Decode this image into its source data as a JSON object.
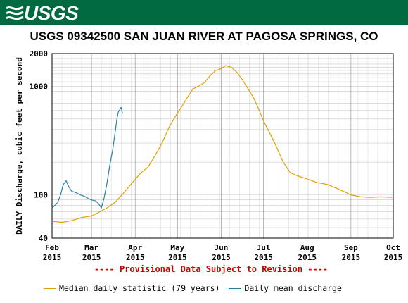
{
  "header": {
    "logo_text": "USGS",
    "banner_color": "#00693f"
  },
  "chart_data": {
    "type": "line",
    "title": "USGS 09342500 SAN JUAN RIVER AT PAGOSA SPRINGS, CO",
    "ylabel": "DAILY Discharge, cubic feet per second",
    "xlabel": "",
    "y_scale": "log",
    "ylim": [
      40,
      2000
    ],
    "y_ticks": [
      40,
      100,
      1000,
      2000
    ],
    "y_tick_labels": [
      "40",
      "100",
      "1000",
      "2000"
    ],
    "xlim": [
      "2015-02-01",
      "2015-10-01"
    ],
    "x_ticks": [
      {
        "date": "2015-02-01",
        "line1": "Feb",
        "line2": "2015"
      },
      {
        "date": "2015-03-01",
        "line1": "Mar",
        "line2": "2015"
      },
      {
        "date": "2015-04-01",
        "line1": "Apr",
        "line2": "2015"
      },
      {
        "date": "2015-05-01",
        "line1": "May",
        "line2": "2015"
      },
      {
        "date": "2015-06-01",
        "line1": "Jun",
        "line2": "2015"
      },
      {
        "date": "2015-07-01",
        "line1": "Jul",
        "line2": "2015"
      },
      {
        "date": "2015-08-01",
        "line1": "Aug",
        "line2": "2015"
      },
      {
        "date": "2015-09-01",
        "line1": "Sep",
        "line2": "2015"
      },
      {
        "date": "2015-10-01",
        "line1": "Oct",
        "line2": "2015"
      }
    ],
    "grid": true,
    "series": [
      {
        "name": "Median daily statistic (79 years)",
        "color": "#e0a000",
        "points": [
          [
            "2015-02-01",
            57
          ],
          [
            "2015-02-08",
            56
          ],
          [
            "2015-02-15",
            58
          ],
          [
            "2015-02-22",
            62
          ],
          [
            "2015-03-01",
            64
          ],
          [
            "2015-03-07",
            70
          ],
          [
            "2015-03-12",
            76
          ],
          [
            "2015-03-18",
            86
          ],
          [
            "2015-03-24",
            105
          ],
          [
            "2015-03-30",
            130
          ],
          [
            "2015-04-05",
            160
          ],
          [
            "2015-04-10",
            180
          ],
          [
            "2015-04-15",
            230
          ],
          [
            "2015-04-20",
            300
          ],
          [
            "2015-04-25",
            420
          ],
          [
            "2015-05-01",
            570
          ],
          [
            "2015-05-04",
            650
          ],
          [
            "2015-05-08",
            790
          ],
          [
            "2015-05-12",
            950
          ],
          [
            "2015-05-16",
            1000
          ],
          [
            "2015-05-20",
            1080
          ],
          [
            "2015-05-24",
            1250
          ],
          [
            "2015-05-28",
            1400
          ],
          [
            "2015-06-01",
            1450
          ],
          [
            "2015-06-04",
            1550
          ],
          [
            "2015-06-08",
            1500
          ],
          [
            "2015-06-12",
            1350
          ],
          [
            "2015-06-16",
            1150
          ],
          [
            "2015-06-20",
            950
          ],
          [
            "2015-06-24",
            780
          ],
          [
            "2015-06-28",
            600
          ],
          [
            "2015-07-01",
            480
          ],
          [
            "2015-07-05",
            380
          ],
          [
            "2015-07-10",
            280
          ],
          [
            "2015-07-15",
            200
          ],
          [
            "2015-07-20",
            160
          ],
          [
            "2015-07-25",
            150
          ],
          [
            "2015-08-01",
            140
          ],
          [
            "2015-08-08",
            130
          ],
          [
            "2015-08-15",
            125
          ],
          [
            "2015-08-22",
            115
          ],
          [
            "2015-09-01",
            100
          ],
          [
            "2015-09-08",
            96
          ],
          [
            "2015-09-15",
            95
          ],
          [
            "2015-09-22",
            96
          ],
          [
            "2015-10-01",
            95
          ]
        ]
      },
      {
        "name": "Daily mean discharge",
        "color": "#2a7fa8",
        "points": [
          [
            "2015-02-01",
            76
          ],
          [
            "2015-02-03",
            80
          ],
          [
            "2015-02-05",
            85
          ],
          [
            "2015-02-07",
            100
          ],
          [
            "2015-02-09",
            125
          ],
          [
            "2015-02-11",
            135
          ],
          [
            "2015-02-13",
            118
          ],
          [
            "2015-02-15",
            108
          ],
          [
            "2015-02-18",
            105
          ],
          [
            "2015-02-21",
            100
          ],
          [
            "2015-02-24",
            97
          ],
          [
            "2015-02-27",
            92
          ],
          [
            "2015-03-01",
            90
          ],
          [
            "2015-03-04",
            88
          ],
          [
            "2015-03-06",
            83
          ],
          [
            "2015-03-08",
            76
          ],
          [
            "2015-03-10",
            95
          ],
          [
            "2015-03-12",
            130
          ],
          [
            "2015-03-14",
            190
          ],
          [
            "2015-03-16",
            260
          ],
          [
            "2015-03-18",
            400
          ],
          [
            "2015-03-19",
            500
          ],
          [
            "2015-03-20",
            580
          ],
          [
            "2015-03-21",
            610
          ],
          [
            "2015-03-22",
            640
          ],
          [
            "2015-03-23",
            560
          ]
        ]
      }
    ],
    "notice": "---- Provisional Data Subject to Revision ----"
  }
}
